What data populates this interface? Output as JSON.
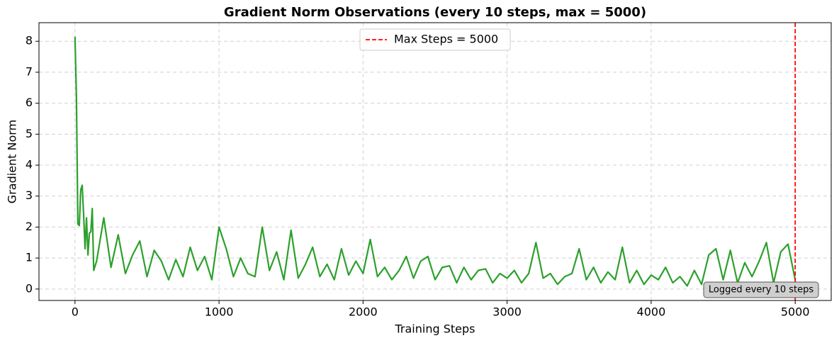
{
  "chart_data": {
    "type": "line",
    "title": "Gradient Norm Observations (every 10 steps, max = 5000)",
    "xlabel": "Training Steps",
    "ylabel": "Gradient Norm",
    "x": [
      0,
      10,
      20,
      30,
      40,
      50,
      60,
      70,
      80,
      90,
      100,
      110,
      120,
      130,
      150,
      200,
      250,
      300,
      350,
      400,
      450,
      500,
      550,
      600,
      650,
      700,
      750,
      800,
      850,
      900,
      950,
      1000,
      1050,
      1100,
      1150,
      1200,
      1250,
      1300,
      1350,
      1400,
      1450,
      1500,
      1550,
      1600,
      1650,
      1700,
      1750,
      1800,
      1850,
      1900,
      1950,
      2000,
      2050,
      2100,
      2150,
      2200,
      2250,
      2300,
      2350,
      2400,
      2450,
      2500,
      2550,
      2600,
      2650,
      2700,
      2750,
      2800,
      2850,
      2900,
      2950,
      3000,
      3050,
      3100,
      3150,
      3200,
      3250,
      3300,
      3350,
      3400,
      3450,
      3500,
      3550,
      3600,
      3650,
      3700,
      3750,
      3800,
      3850,
      3900,
      3950,
      4000,
      4050,
      4100,
      4150,
      4200,
      4250,
      4300,
      4350,
      4400,
      4450,
      4500,
      4550,
      4600,
      4650,
      4700,
      4750,
      4800,
      4850,
      4900,
      4950,
      5000
    ],
    "series": [
      {
        "name": "Gradient Norm",
        "color": "#2ca02c",
        "values": [
          8.15,
          6.2,
          2.1,
          2.05,
          3.2,
          3.35,
          2.4,
          1.3,
          2.3,
          1.1,
          1.8,
          1.85,
          2.6,
          0.6,
          0.9,
          2.3,
          0.7,
          1.75,
          0.5,
          1.1,
          1.55,
          0.4,
          1.25,
          0.9,
          0.3,
          0.95,
          0.4,
          1.35,
          0.6,
          1.05,
          0.3,
          2.0,
          1.3,
          0.4,
          1.0,
          0.5,
          0.4,
          2.0,
          0.6,
          1.2,
          0.3,
          1.9,
          0.35,
          0.8,
          1.35,
          0.4,
          0.8,
          0.3,
          1.3,
          0.45,
          0.9,
          0.5,
          1.6,
          0.4,
          0.7,
          0.3,
          0.6,
          1.05,
          0.35,
          0.9,
          1.05,
          0.3,
          0.7,
          0.75,
          0.2,
          0.7,
          0.3,
          0.6,
          0.65,
          0.2,
          0.5,
          0.35,
          0.6,
          0.2,
          0.5,
          1.5,
          0.35,
          0.5,
          0.15,
          0.4,
          0.5,
          1.3,
          0.3,
          0.7,
          0.2,
          0.55,
          0.3,
          1.35,
          0.2,
          0.6,
          0.15,
          0.45,
          0.3,
          0.7,
          0.2,
          0.4,
          0.1,
          0.6,
          0.15,
          1.1,
          1.3,
          0.3,
          1.25,
          0.2,
          0.85,
          0.4,
          0.9,
          1.5,
          0.2,
          1.2,
          1.45,
          0.3
        ]
      }
    ],
    "vline": {
      "x": 5000,
      "name": "Max Steps = 5000",
      "color": "#ff0000"
    },
    "annotation": "Logged every 10 steps",
    "xlim": [
      -250,
      5250
    ],
    "ylim": [
      -0.37,
      8.6
    ],
    "xticks": [
      0,
      1000,
      2000,
      3000,
      4000,
      5000
    ],
    "yticks": [
      0,
      1,
      2,
      3,
      4,
      5,
      6,
      7,
      8
    ],
    "grid": true,
    "legend": "upper center"
  }
}
